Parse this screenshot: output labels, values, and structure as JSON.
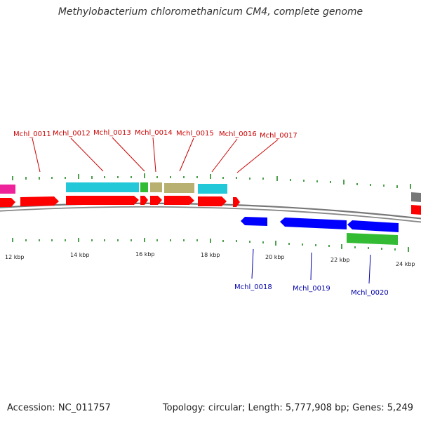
{
  "title": "Methylobacterium chloromethanicum CM4, complete genome",
  "footer": {
    "accession": "Accession: NC_011757",
    "stats": "Topology: circular; Length: 5,777,908 bp; Genes: 5,249"
  },
  "colors": {
    "cds": "#ff0000",
    "upper_label": "#cc0000",
    "lower_label": "#0000aa",
    "reverse_cds": "#0000ff",
    "cyan": "#22c8d8",
    "green": "#33bb33",
    "khaki": "#b8b070",
    "magenta": "#ee2299",
    "gray": "#777777",
    "backbone": "#888888",
    "tick": "#228822"
  },
  "tick_labels": [
    "12 kbp",
    "14 kbp",
    "16 kbp",
    "18 kbp",
    "20 kbp",
    "22 kbp",
    "24 kbp"
  ],
  "upper_genes": [
    "Mchl_0011",
    "Mchl_0012",
    "Mchl_0013",
    "Mchl_0014",
    "Mchl_0015",
    "Mchl_0016",
    "Mchl_0017"
  ],
  "lower_genes": [
    "Mchl_0018",
    "Mchl_0019",
    "Mchl_0020"
  ]
}
